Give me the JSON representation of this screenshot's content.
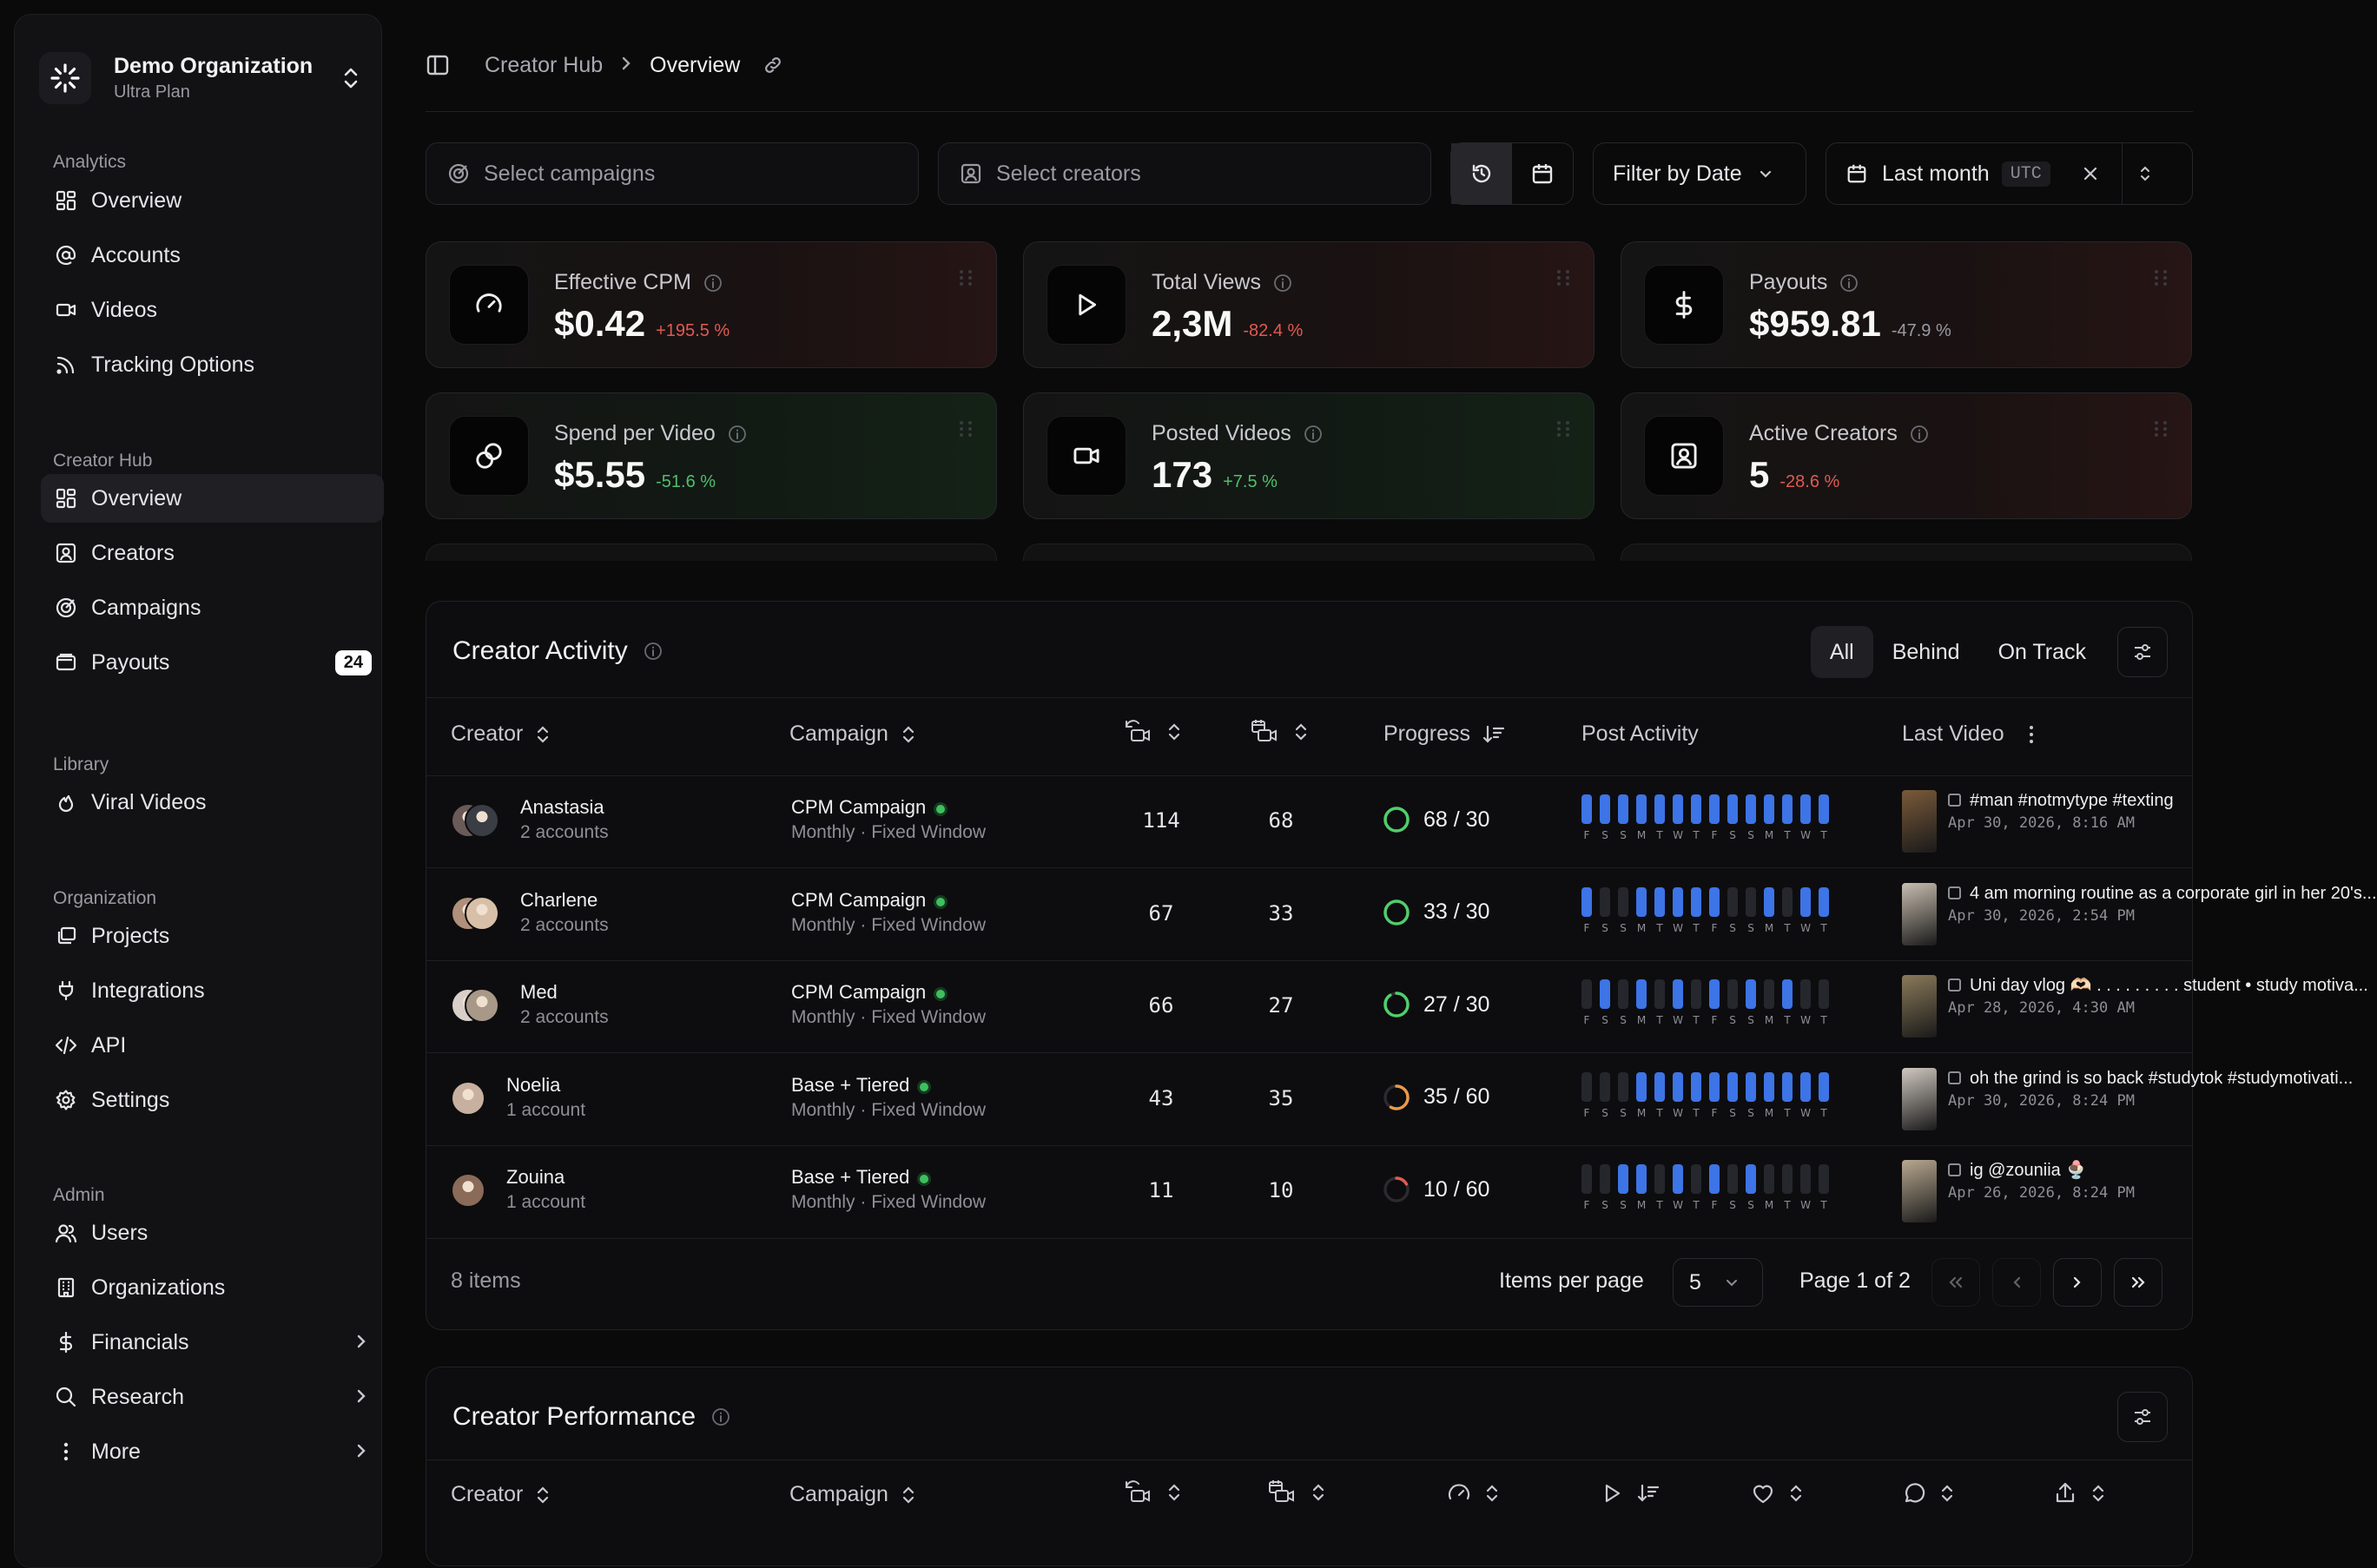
{
  "sidebar": {
    "org": {
      "name": "Demo Organization",
      "plan": "Ultra Plan"
    },
    "sections": [
      {
        "label": "Analytics",
        "items": [
          {
            "label": "Overview",
            "icon": "grid-icon"
          },
          {
            "label": "Accounts",
            "icon": "at-icon"
          },
          {
            "label": "Videos",
            "icon": "video-icon"
          },
          {
            "label": "Tracking Options",
            "icon": "rss-icon"
          }
        ]
      },
      {
        "label": "Creator Hub",
        "items": [
          {
            "label": "Overview",
            "icon": "grid-icon",
            "active": true
          },
          {
            "label": "Creators",
            "icon": "contact-icon"
          },
          {
            "label": "Campaigns",
            "icon": "target-icon"
          },
          {
            "label": "Payouts",
            "icon": "wallet-icon",
            "badge": "24"
          }
        ]
      },
      {
        "label": "Library",
        "items": [
          {
            "label": "Viral Videos",
            "icon": "flame-icon"
          }
        ]
      },
      {
        "label": "Organization",
        "items": [
          {
            "label": "Projects",
            "icon": "layers-icon"
          },
          {
            "label": "Integrations",
            "icon": "plug-icon"
          },
          {
            "label": "API",
            "icon": "code-icon"
          },
          {
            "label": "Settings",
            "icon": "gear-icon"
          }
        ]
      },
      {
        "label": "Admin",
        "items": [
          {
            "label": "Users",
            "icon": "users-icon"
          },
          {
            "label": "Organizations",
            "icon": "building-icon"
          },
          {
            "label": "Financials",
            "icon": "dollar-icon"
          },
          {
            "label": "Research",
            "icon": "search-icon"
          },
          {
            "label": "More",
            "icon": "dots-icon"
          }
        ]
      }
    ]
  },
  "breadcrumb": {
    "parent": "Creator Hub",
    "current": "Overview"
  },
  "filters": {
    "campaigns_placeholder": "Select campaigns",
    "creators_placeholder": "Select creators",
    "filter_by_date": "Filter by Date",
    "range": "Last month",
    "tz": "UTC"
  },
  "metrics": [
    {
      "label": "Effective CPM",
      "value": "$0.42",
      "change": "+195.5 %",
      "tone": "neg",
      "bg": "red",
      "icon": "gauge-icon"
    },
    {
      "label": "Total Views",
      "value": "2,3M",
      "change": "-82.4 %",
      "tone": "neg",
      "bg": "red",
      "icon": "play-icon"
    },
    {
      "label": "Payouts",
      "value": "$959.81",
      "change": "-47.9 %",
      "tone": "neu",
      "bg": "red",
      "icon": "dollar-icon"
    },
    {
      "label": "Spend per Video",
      "value": "$5.55",
      "change": "-51.6 %",
      "tone": "pos",
      "bg": "green",
      "icon": "coins-icon"
    },
    {
      "label": "Posted Videos",
      "value": "173",
      "change": "+7.5 %",
      "tone": "pos",
      "bg": "green",
      "icon": "video-icon"
    },
    {
      "label": "Active Creators",
      "value": "5",
      "change": "-28.6 %",
      "tone": "neg",
      "bg": "red",
      "icon": "contact-icon"
    }
  ],
  "activity": {
    "title": "Creator Activity",
    "tabs": [
      "All",
      "Behind",
      "On Track"
    ],
    "columns": {
      "creator": "Creator",
      "campaign": "Campaign",
      "progress": "Progress",
      "post_activity": "Post Activity",
      "last_video": "Last Video"
    },
    "days": [
      "F",
      "S",
      "S",
      "M",
      "T",
      "W",
      "T",
      "F",
      "S",
      "S",
      "M",
      "T",
      "W",
      "T"
    ],
    "rows": [
      {
        "name": "Anastasia",
        "accounts": "2 accounts",
        "campaign": "CPM Campaign",
        "schedule": "Monthly · Fixed Window",
        "a": "114",
        "b": "68",
        "progress": "68 / 30",
        "ratio": 1.0,
        "ring": "#4fcf6a",
        "activity": [
          1,
          1,
          1,
          1,
          1,
          1,
          1,
          1,
          1,
          1,
          1,
          1,
          1,
          1
        ],
        "video_title": "#man #notmytype #texting",
        "video_date": "Apr 30, 2026, 8:16 AM",
        "avatars": [
          "#6a5a58",
          "#3a3d44"
        ],
        "thumb": "#7a5a3a"
      },
      {
        "name": "Charlene",
        "accounts": "2 accounts",
        "campaign": "CPM Campaign",
        "schedule": "Monthly · Fixed Window",
        "a": "67",
        "b": "33",
        "progress": "33 / 30",
        "ratio": 1.0,
        "ring": "#4fcf6a",
        "activity": [
          1,
          0,
          0,
          1,
          1,
          1,
          1,
          1,
          0,
          0,
          1,
          0,
          1,
          1
        ],
        "video_title": "4 am morning routine as a corporate girl in her 20's...",
        "video_date": "Apr 30, 2026, 2:54 PM",
        "avatars": [
          "#b0907a",
          "#d8c0a8"
        ],
        "thumb": "#c8beb0"
      },
      {
        "name": "Med",
        "accounts": "2 accounts",
        "campaign": "CPM Campaign",
        "schedule": "Monthly · Fixed Window",
        "a": "66",
        "b": "27",
        "progress": "27 / 30",
        "ratio": 0.9,
        "ring": "#4fcf6a",
        "activity": [
          0,
          1,
          0,
          1,
          0,
          1,
          0,
          1,
          0,
          1,
          0,
          1,
          0,
          0
        ],
        "video_title": "Uni day vlog 🫶🏻 . . . . . . . . . student • study motiva...",
        "video_date": "Apr 28, 2026, 4:30 AM",
        "avatars": [
          "#d8d0c8",
          "#a89888"
        ],
        "thumb": "#8a7a5a"
      },
      {
        "name": "Noelia",
        "accounts": "1 account",
        "campaign": "Base + Tiered",
        "schedule": "Monthly · Fixed Window",
        "a": "43",
        "b": "35",
        "progress": "35 / 60",
        "ratio": 0.58,
        "ring": "#e89a4a",
        "activity": [
          0,
          0,
          0,
          1,
          1,
          1,
          1,
          1,
          1,
          1,
          1,
          1,
          1,
          1
        ],
        "video_title": "oh the grind is so back #studytok #studymotivati...",
        "video_date": "Apr 30, 2026, 8:24 PM",
        "avatars": [
          "#c8b0a0"
        ],
        "thumb": "#d0c8c0"
      },
      {
        "name": "Zouina",
        "accounts": "1 account",
        "campaign": "Base + Tiered",
        "schedule": "Monthly · Fixed Window",
        "a": "11",
        "b": "10",
        "progress": "10 / 60",
        "ratio": 0.17,
        "ring": "#e05a52",
        "activity": [
          0,
          0,
          1,
          1,
          0,
          1,
          0,
          1,
          0,
          1,
          0,
          0,
          0,
          0
        ],
        "video_title": "ig @zouniia 🍨",
        "video_date": "Apr 26, 2026, 8:24 PM",
        "avatars": [
          "#8a6a58"
        ],
        "thumb": "#b8a890"
      }
    ],
    "items_count": "8 items",
    "items_per_page_label": "Items per page",
    "items_per_page": "5",
    "page_label": "Page 1 of 2"
  },
  "performance": {
    "title": "Creator Performance",
    "columns": {
      "creator": "Creator",
      "campaign": "Campaign"
    }
  }
}
